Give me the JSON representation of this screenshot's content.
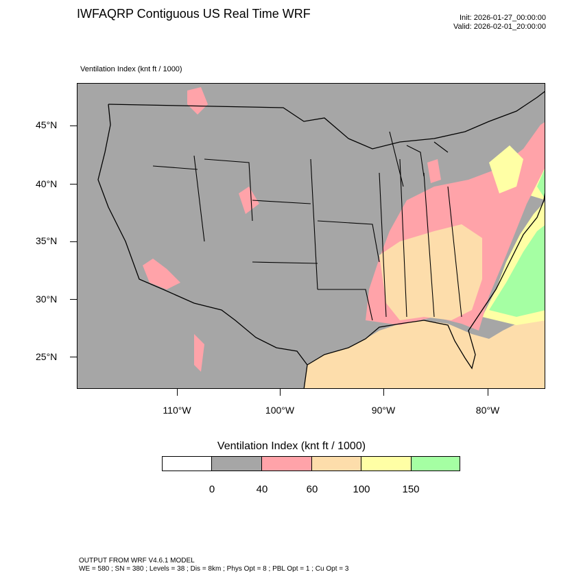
{
  "header": {
    "title": "IWFAQRP Contiguous US Real Time WRF",
    "init": "Init: 2026-01-27_00:00:00",
    "valid": "Valid: 2026-02-01_20:00:00",
    "field_label": "Ventilation Index   (knt ft / 1000)"
  },
  "map": {
    "projection": "lambert-conformal",
    "region": "Contiguous United States",
    "lat_labels": [
      "45°N",
      "40°N",
      "35°N",
      "30°N",
      "25°N"
    ],
    "lon_labels": [
      "110°W",
      "100°W",
      "90°W",
      "80°W"
    ],
    "colors": {
      "background_low": "#a6a6a6",
      "low": "#ffa3a9",
      "mid": "#fdddab",
      "high": "#ffffa5",
      "very_high": "#a5ffa3",
      "borders": "#000000"
    }
  },
  "legend": {
    "title": "Ventilation Index  (knt ft / 1000)",
    "labels": [
      "0",
      "40",
      "60",
      "100",
      "150"
    ],
    "colors": [
      "#ffffff",
      "#a6a6a6",
      "#ffa3a9",
      "#fdddab",
      "#ffffa5",
      "#a5ffa3"
    ]
  },
  "footer": {
    "line1": "OUTPUT FROM WRF V4.6.1 MODEL",
    "line2": "WE = 580 ; SN = 380 ; Levels = 38 ; Dis = 8km ; Phys Opt = 8 ; PBL Opt = 1 ; Cu Opt = 3"
  }
}
